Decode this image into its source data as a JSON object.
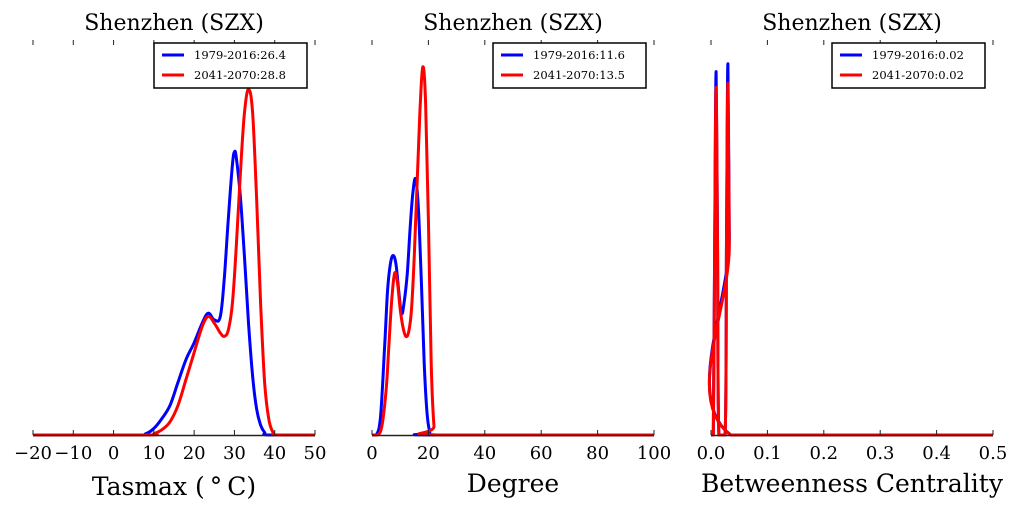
{
  "chart_data": [
    {
      "type": "line",
      "title": "Shenzhen (SZX)",
      "xlabel": "Tasmax ($^\\circ$C)",
      "xlabel_display": "Tasmax ( ° C)",
      "ylabel": "",
      "xlim": [
        -20,
        50
      ],
      "xticks": [
        "−20",
        "−10",
        "0",
        "10",
        "20",
        "30",
        "40",
        "50"
      ],
      "xtick_values": [
        -20,
        -10,
        0,
        10,
        20,
        30,
        40,
        50
      ],
      "legend_position": "top-right",
      "series": [
        {
          "name": "1979-2016:26.4",
          "color": "#0000ff",
          "x": [
            -20,
            5,
            8,
            10,
            12,
            14,
            16,
            18,
            20,
            22,
            23.5,
            25,
            26.5,
            27.5,
            28.5,
            29.5,
            30,
            30.5,
            31.5,
            32.5,
            33.5,
            34.5,
            35.5,
            36.5,
            37.5,
            38.5,
            50
          ],
          "y": [
            0,
            0.0,
            0.002,
            0.01,
            0.025,
            0.045,
            0.08,
            0.115,
            0.14,
            0.17,
            0.185,
            0.175,
            0.18,
            0.24,
            0.33,
            0.41,
            0.43,
            0.42,
            0.36,
            0.27,
            0.17,
            0.09,
            0.04,
            0.015,
            0.004,
            0.0,
            0
          ]
        },
        {
          "name": "2041-2070:28.8",
          "color": "#ff0000",
          "x": [
            -20,
            8,
            10,
            12,
            14,
            16,
            18,
            20,
            22,
            23.5,
            25,
            26.5,
            27.5,
            28.5,
            29.5,
            30.5,
            31.5,
            32.5,
            33.5,
            34.5,
            35.5,
            36.5,
            37.5,
            38.5,
            39.5,
            40.5,
            50
          ],
          "y": [
            0,
            0.0,
            0.002,
            0.008,
            0.02,
            0.045,
            0.085,
            0.125,
            0.165,
            0.18,
            0.17,
            0.155,
            0.15,
            0.16,
            0.2,
            0.29,
            0.4,
            0.49,
            0.525,
            0.49,
            0.36,
            0.2,
            0.08,
            0.025,
            0.005,
            0.0,
            0
          ]
        }
      ],
      "ylim": [
        0,
        0.6
      ]
    },
    {
      "type": "line",
      "title": "Shenzhen (SZX)",
      "xlabel": "Degree",
      "ylabel": "",
      "xlim": [
        0,
        100
      ],
      "xticks": [
        "0",
        "20",
        "40",
        "60",
        "80",
        "100"
      ],
      "xtick_values": [
        0,
        20,
        40,
        60,
        80,
        100
      ],
      "legend_position": "top-right",
      "series": [
        {
          "name": "1979-2016:11.6",
          "color": "#0000ff",
          "x": [
            0,
            1.5,
            3,
            4.5,
            5.5,
            6.5,
            7.5,
            8.5,
            9.5,
            10.5,
            11.5,
            12.5,
            13.5,
            14.5,
            15.5,
            16.5,
            17.5,
            18.5,
            19.5,
            20.5,
            21.5,
            100
          ],
          "y": [
            0,
            0.0,
            0.02,
            0.1,
            0.16,
            0.19,
            0.2,
            0.19,
            0.16,
            0.135,
            0.15,
            0.18,
            0.23,
            0.27,
            0.285,
            0.25,
            0.17,
            0.08,
            0.025,
            0.003,
            0.0,
            0
          ]
        },
        {
          "name": "2041-2070:13.5",
          "color": "#ff0000",
          "x": [
            0,
            2,
            3.5,
            5,
            6,
            7,
            8,
            9,
            10,
            11,
            12,
            13,
            14,
            15,
            16,
            17,
            18,
            19,
            20,
            21,
            22,
            23,
            100
          ],
          "y": [
            0,
            0.0,
            0.01,
            0.05,
            0.1,
            0.15,
            0.18,
            0.17,
            0.14,
            0.12,
            0.11,
            0.115,
            0.14,
            0.2,
            0.28,
            0.36,
            0.41,
            0.37,
            0.24,
            0.08,
            0.01,
            0.0,
            0
          ]
        }
      ],
      "ylim": [
        0,
        0.44
      ]
    },
    {
      "type": "line",
      "title": "Shenzhen (SZX)",
      "xlabel": "Betweenness Centrality",
      "ylabel": "",
      "xlim": [
        0,
        0.5
      ],
      "xticks": [
        "0.0",
        "0.1",
        "0.2",
        "0.3",
        "0.4",
        "0.5"
      ],
      "xtick_values": [
        0,
        0.1,
        0.2,
        0.3,
        0.4,
        0.5
      ],
      "legend_position": "top-right",
      "series": [
        {
          "name": "1979-2016:0.02",
          "color": "#0000ff",
          "x": [
            0,
            0.004,
            0.0065,
            0.009,
            0.0115,
            0.014,
            0.025,
            0.0275,
            0.03,
            0.0325,
            0.035,
            0.5
          ],
          "y": [
            0,
            0.0,
            0.5,
            0.92,
            0.5,
            0.0,
            0.0,
            0.5,
            0.94,
            0.5,
            0.0,
            0
          ]
        },
        {
          "name": "2041-2070:0.02",
          "color": "#ff0000",
          "x": [
            0,
            0.004,
            0.0065,
            0.009,
            0.0115,
            0.014,
            0.025,
            0.0275,
            0.03,
            0.0325,
            0.035,
            0.5
          ],
          "y": [
            0,
            0.0,
            0.48,
            0.88,
            0.48,
            0.0,
            0.0,
            0.48,
            0.89,
            0.48,
            0.0,
            0
          ]
        }
      ],
      "ylim": [
        0,
        1.0
      ]
    }
  ]
}
